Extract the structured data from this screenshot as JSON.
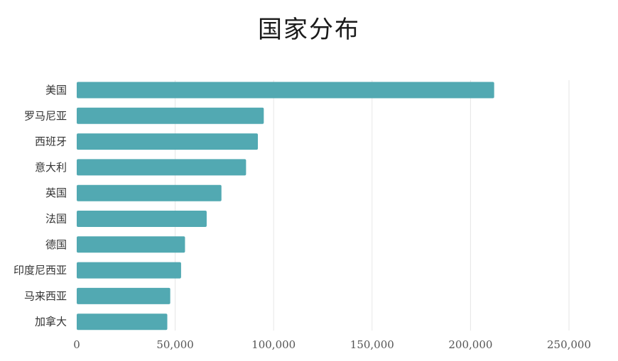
{
  "chart_data": {
    "type": "bar",
    "orientation": "horizontal",
    "title": "国家分布",
    "categories": [
      "美国",
      "罗马尼亚",
      "西班牙",
      "意大利",
      "英国",
      "法国",
      "德国",
      "印度尼西亚",
      "马来西亚",
      "加拿大"
    ],
    "values": [
      212000,
      95000,
      92000,
      86000,
      73500,
      66000,
      55000,
      53000,
      47500,
      46000
    ],
    "xlim": [
      0,
      250000
    ],
    "xticks": [
      0,
      50000,
      100000,
      150000,
      200000,
      250000
    ],
    "xtick_labels": [
      "0",
      "50,000",
      "100,000",
      "150,000",
      "200,000",
      "250,000"
    ],
    "grid": true,
    "bar_color": "#52a9b2"
  }
}
